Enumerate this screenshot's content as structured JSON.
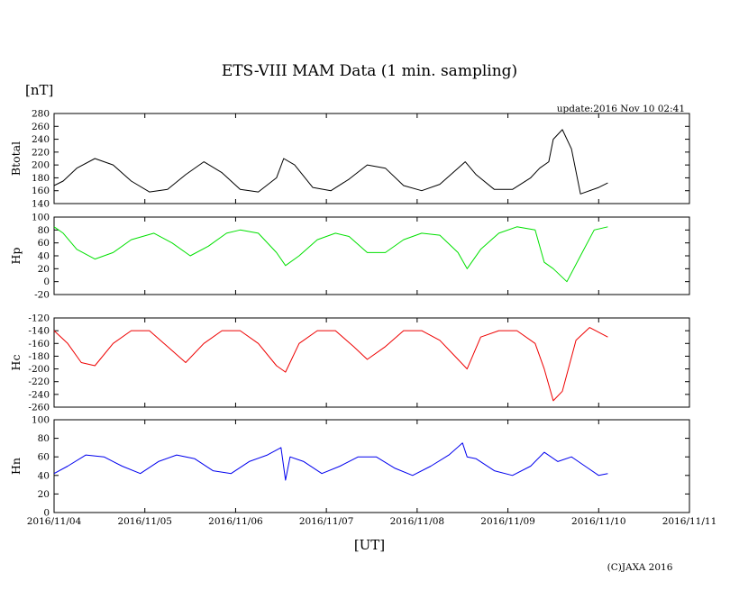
{
  "title": "ETS-VIII MAM Data (1 min. sampling)",
  "unit_label": "[nT]",
  "update_text": "update:2016 Nov 10 02:41",
  "x_unit_label": "[UT]",
  "copyright": "(C)JAXA 2016",
  "chart_data": {
    "type": "line",
    "title": "ETS-VIII MAM Data (1 min. sampling)",
    "xlabel": "[UT]",
    "ylabel": "[nT]",
    "x_ticks": [
      "2016/11/04",
      "2016/11/05",
      "2016/11/06",
      "2016/11/07",
      "2016/11/08",
      "2016/11/09",
      "2016/11/10",
      "2016/11/11"
    ],
    "xlim": [
      0,
      7
    ],
    "x_unit": "days since 2016/11/04 00:00 UT",
    "panels": [
      {
        "name": "Btotal",
        "color": "#000000",
        "ylim": [
          140,
          280
        ],
        "yticks": [
          140,
          160,
          180,
          200,
          220,
          240,
          260,
          280
        ],
        "x": [
          0,
          0.1,
          0.25,
          0.45,
          0.65,
          0.85,
          1.05,
          1.25,
          1.45,
          1.65,
          1.85,
          2.05,
          2.25,
          2.45,
          2.53,
          2.65,
          2.85,
          3.05,
          3.25,
          3.45,
          3.65,
          3.85,
          4.05,
          4.25,
          4.45,
          4.53,
          4.65,
          4.85,
          5.05,
          5.25,
          5.35,
          5.45,
          5.5,
          5.6,
          5.7,
          5.8,
          6.0,
          6.1
        ],
        "y": [
          168,
          175,
          195,
          210,
          200,
          175,
          158,
          162,
          185,
          205,
          188,
          162,
          158,
          180,
          210,
          200,
          165,
          160,
          178,
          200,
          195,
          168,
          160,
          170,
          195,
          205,
          185,
          162,
          162,
          180,
          195,
          205,
          240,
          255,
          225,
          155,
          165,
          172
        ]
      },
      {
        "name": "Hp",
        "color": "#00e000",
        "ylim": [
          -20,
          100
        ],
        "yticks": [
          -20,
          0,
          20,
          40,
          60,
          80,
          100
        ],
        "x": [
          0,
          0.1,
          0.25,
          0.45,
          0.65,
          0.85,
          1.1,
          1.3,
          1.5,
          1.7,
          1.9,
          2.05,
          2.25,
          2.45,
          2.55,
          2.7,
          2.9,
          3.1,
          3.25,
          3.45,
          3.65,
          3.85,
          4.05,
          4.25,
          4.45,
          4.55,
          4.7,
          4.9,
          5.1,
          5.3,
          5.4,
          5.5,
          5.65,
          5.8,
          5.95,
          6.1
        ],
        "y": [
          85,
          75,
          50,
          35,
          45,
          65,
          75,
          60,
          40,
          55,
          75,
          80,
          75,
          45,
          25,
          40,
          65,
          75,
          70,
          45,
          45,
          65,
          75,
          72,
          45,
          20,
          50,
          75,
          85,
          80,
          30,
          20,
          0,
          40,
          80,
          85
        ]
      },
      {
        "name": "Hc",
        "color": "#ee0000",
        "ylim": [
          -260,
          -120
        ],
        "yticks": [
          -260,
          -240,
          -220,
          -200,
          -180,
          -160,
          -140,
          -120
        ],
        "x": [
          0,
          0.15,
          0.3,
          0.45,
          0.65,
          0.85,
          1.05,
          1.25,
          1.45,
          1.65,
          1.85,
          2.05,
          2.25,
          2.45,
          2.55,
          2.7,
          2.9,
          3.1,
          3.3,
          3.45,
          3.65,
          3.85,
          4.05,
          4.25,
          4.45,
          4.55,
          4.7,
          4.9,
          5.1,
          5.3,
          5.4,
          5.5,
          5.6,
          5.75,
          5.9,
          6.1
        ],
        "y": [
          -140,
          -160,
          -190,
          -195,
          -160,
          -140,
          -140,
          -165,
          -190,
          -160,
          -140,
          -140,
          -160,
          -195,
          -205,
          -160,
          -140,
          -140,
          -165,
          -185,
          -165,
          -140,
          -140,
          -155,
          -185,
          -200,
          -150,
          -140,
          -140,
          -160,
          -200,
          -250,
          -235,
          -155,
          -135,
          -150
        ]
      },
      {
        "name": "Hn",
        "color": "#0000ee",
        "ylim": [
          0,
          100
        ],
        "yticks": [
          0,
          20,
          40,
          60,
          80,
          100
        ],
        "x": [
          0,
          0.15,
          0.35,
          0.55,
          0.75,
          0.95,
          1.15,
          1.35,
          1.55,
          1.75,
          1.95,
          2.15,
          2.35,
          2.5,
          2.55,
          2.6,
          2.75,
          2.95,
          3.15,
          3.35,
          3.55,
          3.75,
          3.95,
          4.15,
          4.35,
          4.5,
          4.55,
          4.65,
          4.85,
          5.05,
          5.25,
          5.4,
          5.55,
          5.7,
          5.85,
          6.0,
          6.1
        ],
        "y": [
          42,
          50,
          62,
          60,
          50,
          42,
          55,
          62,
          58,
          45,
          42,
          55,
          62,
          70,
          35,
          60,
          55,
          42,
          50,
          60,
          60,
          48,
          40,
          50,
          62,
          75,
          60,
          58,
          45,
          40,
          50,
          65,
          55,
          60,
          50,
          40,
          42
        ]
      }
    ]
  }
}
